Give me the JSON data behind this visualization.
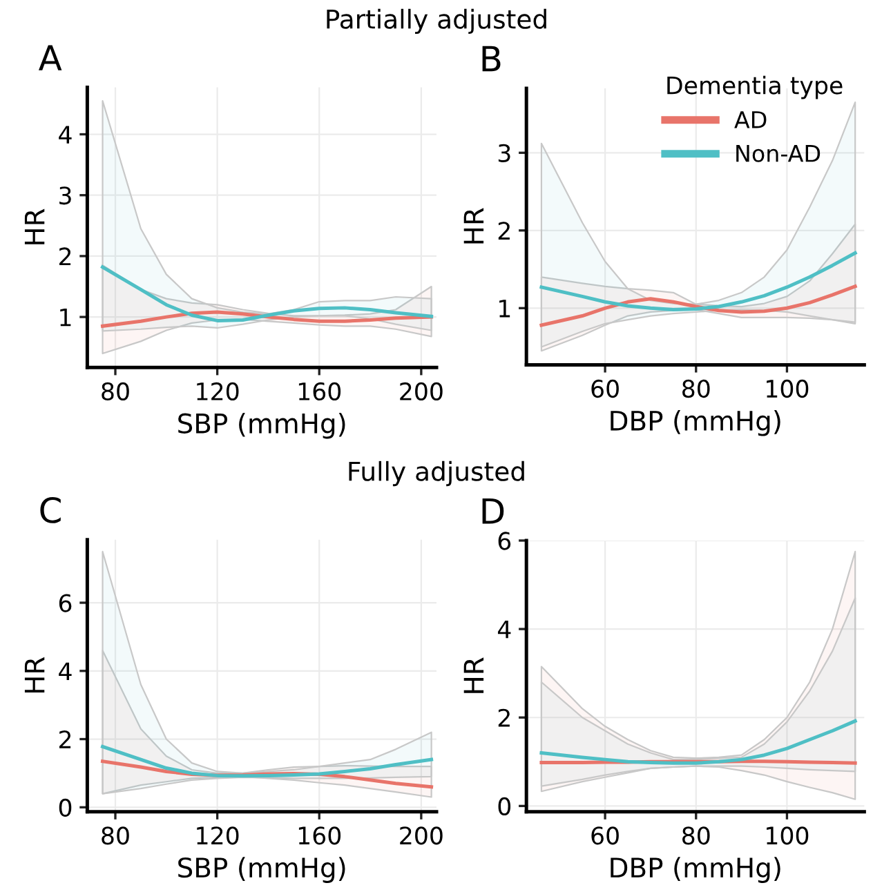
{
  "chart_data": [
    {
      "type": "line",
      "title": "A",
      "annotations": [
        "Partially adjusted"
      ],
      "xlabel": "SBP (mmHg)",
      "ylabel": "HR",
      "xlim": [
        69,
        206
      ],
      "ylim": [
        0.17,
        4.77
      ],
      "xticks": [
        80,
        120,
        160,
        200
      ],
      "yticks": [
        1,
        2,
        3,
        4
      ],
      "grid": true,
      "legend": false,
      "x": [
        75,
        90,
        100,
        110,
        120,
        130,
        140,
        150,
        160,
        170,
        180,
        190,
        204
      ],
      "series": [
        {
          "color": "#e8746a",
          "values": [
            0.85,
            0.93,
            1.0,
            1.06,
            1.08,
            1.05,
            1.0,
            0.96,
            0.93,
            0.93,
            0.95,
            0.98,
            1.0
          ],
          "upper": [
            1.85,
            1.45,
            1.3,
            1.23,
            1.2,
            1.12,
            1.06,
            1.02,
            1.02,
            1.03,
            1.05,
            1.12,
            1.5
          ],
          "lower": [
            0.4,
            0.6,
            0.78,
            0.9,
            0.95,
            0.96,
            0.93,
            0.9,
            0.87,
            0.85,
            0.85,
            0.8,
            0.68
          ]
        },
        {
          "color": "#4fbfc5",
          "values": [
            1.82,
            1.45,
            1.2,
            1.03,
            0.94,
            0.95,
            1.03,
            1.1,
            1.14,
            1.15,
            1.12,
            1.07,
            1.01
          ],
          "upper": [
            4.55,
            2.45,
            1.7,
            1.3,
            1.15,
            1.08,
            1.05,
            1.12,
            1.25,
            1.27,
            1.27,
            1.33,
            1.3
          ],
          "lower": [
            0.77,
            0.8,
            0.83,
            0.85,
            0.82,
            0.88,
            0.95,
            1.0,
            1.02,
            1.02,
            0.97,
            0.88,
            0.78
          ]
        }
      ]
    },
    {
      "type": "line",
      "title": "B",
      "xlabel": "DBP (mmHg)",
      "ylabel": "HR",
      "xlim": [
        42.7,
        117
      ],
      "ylim": [
        0.27,
        3.83
      ],
      "xticks": [
        60,
        80,
        100
      ],
      "yticks": [
        1,
        2,
        3
      ],
      "grid": true,
      "legend": "top right",
      "legend_title": "Dementia type",
      "x": [
        46,
        55,
        60,
        65,
        70,
        75,
        80,
        85,
        90,
        95,
        100,
        105,
        110,
        115
      ],
      "series": [
        {
          "name": "AD",
          "color": "#e8746a",
          "values": [
            0.78,
            0.9,
            1.0,
            1.08,
            1.12,
            1.08,
            1.02,
            0.97,
            0.95,
            0.96,
            1.0,
            1.07,
            1.17,
            1.28
          ],
          "upper": [
            1.4,
            1.32,
            1.28,
            1.25,
            1.23,
            1.2,
            1.05,
            1.03,
            1.02,
            1.06,
            1.15,
            1.35,
            1.7,
            2.08
          ],
          "lower": [
            0.45,
            0.65,
            0.78,
            0.9,
            0.95,
            0.97,
            0.98,
            0.93,
            0.88,
            0.88,
            0.88,
            0.87,
            0.85,
            0.8
          ]
        },
        {
          "name": "Non-AD",
          "color": "#4fbfc5",
          "values": [
            1.27,
            1.15,
            1.08,
            1.03,
            1.0,
            0.98,
            0.99,
            1.02,
            1.08,
            1.16,
            1.27,
            1.4,
            1.55,
            1.71
          ],
          "upper": [
            3.12,
            2.1,
            1.6,
            1.25,
            1.1,
            1.06,
            1.05,
            1.1,
            1.2,
            1.4,
            1.75,
            2.3,
            2.9,
            3.65
          ],
          "lower": [
            0.5,
            0.7,
            0.8,
            0.85,
            0.9,
            0.93,
            0.95,
            0.97,
            0.98,
            0.97,
            0.95,
            0.9,
            0.85,
            0.82
          ]
        }
      ]
    },
    {
      "type": "line",
      "title": "C",
      "annotations": [
        "Fully adjusted"
      ],
      "xlabel": "SBP (mmHg)",
      "ylabel": "HR",
      "xlim": [
        69,
        206
      ],
      "ylim": [
        -0.13,
        7.85
      ],
      "xticks": [
        80,
        120,
        160,
        200
      ],
      "yticks": [
        0,
        2,
        4,
        6
      ],
      "grid": true,
      "legend": false,
      "x": [
        75,
        90,
        100,
        110,
        120,
        130,
        140,
        150,
        160,
        170,
        180,
        190,
        204
      ],
      "series": [
        {
          "color": "#e8746a",
          "values": [
            1.35,
            1.18,
            1.05,
            0.97,
            0.94,
            0.95,
            0.98,
            0.99,
            0.97,
            0.9,
            0.8,
            0.7,
            0.6
          ],
          "upper": [
            4.6,
            2.3,
            1.5,
            1.1,
            1.0,
            1.0,
            1.1,
            1.18,
            1.2,
            1.22,
            1.21,
            1.2,
            1.2
          ],
          "lower": [
            0.4,
            0.65,
            0.75,
            0.85,
            0.88,
            0.9,
            0.85,
            0.8,
            0.72,
            0.65,
            0.55,
            0.45,
            0.3
          ]
        },
        {
          "color": "#4fbfc5",
          "values": [
            1.78,
            1.4,
            1.15,
            1.0,
            0.93,
            0.92,
            0.93,
            0.95,
            0.98,
            1.05,
            1.13,
            1.25,
            1.4
          ],
          "upper": [
            7.5,
            3.6,
            2.0,
            1.3,
            1.05,
            1.0,
            1.05,
            1.1,
            1.2,
            1.3,
            1.4,
            1.7,
            2.2
          ],
          "lower": [
            0.4,
            0.55,
            0.68,
            0.8,
            0.85,
            0.88,
            0.87,
            0.85,
            0.85,
            0.85,
            0.86,
            0.88,
            0.9
          ]
        }
      ]
    },
    {
      "type": "line",
      "title": "D",
      "xlabel": "DBP (mmHg)",
      "ylabel": "HR",
      "xlim": [
        42.7,
        117
      ],
      "ylim": [
        -0.13,
        6.0
      ],
      "xticks": [
        60,
        80,
        100
      ],
      "yticks": [
        0,
        2,
        4,
        6
      ],
      "grid": true,
      "legend": false,
      "x": [
        46,
        55,
        60,
        65,
        70,
        75,
        80,
        85,
        90,
        95,
        100,
        105,
        110,
        115
      ],
      "series": [
        {
          "color": "#e8746a",
          "values": [
            0.98,
            0.98,
            0.99,
            0.99,
            1.0,
            1.0,
            1.0,
            1.0,
            1.01,
            1.01,
            1.0,
            0.99,
            0.98,
            0.97
          ],
          "upper": [
            3.15,
            2.2,
            1.8,
            1.5,
            1.25,
            1.1,
            1.08,
            1.1,
            1.15,
            1.5,
            2.0,
            2.8,
            4.0,
            5.75
          ],
          "lower": [
            0.33,
            0.55,
            0.65,
            0.75,
            0.85,
            0.88,
            0.9,
            0.88,
            0.8,
            0.7,
            0.55,
            0.42,
            0.3,
            0.15
          ]
        },
        {
          "color": "#4fbfc5",
          "values": [
            1.2,
            1.1,
            1.05,
            1.0,
            0.98,
            0.97,
            0.97,
            1.0,
            1.05,
            1.15,
            1.3,
            1.5,
            1.7,
            1.92
          ],
          "upper": [
            2.8,
            2.0,
            1.7,
            1.4,
            1.2,
            1.05,
            1.05,
            1.08,
            1.1,
            1.4,
            1.9,
            2.6,
            3.5,
            4.7
          ],
          "lower": [
            0.45,
            0.6,
            0.7,
            0.78,
            0.85,
            0.88,
            0.9,
            0.9,
            0.9,
            0.88,
            0.85,
            0.82,
            0.8,
            0.78
          ]
        }
      ]
    }
  ]
}
